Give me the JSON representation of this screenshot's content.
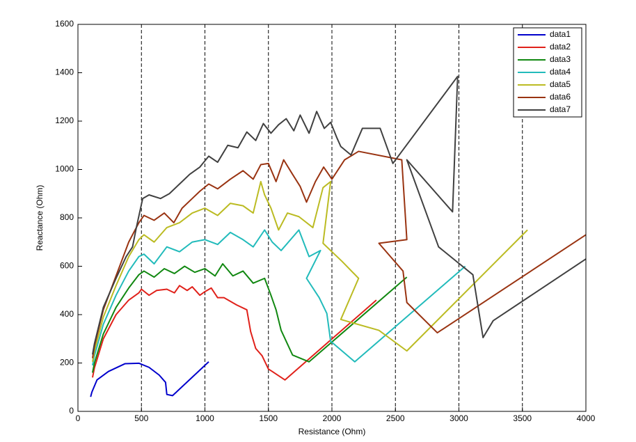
{
  "chart_data": {
    "type": "line",
    "xlabel": "Resistance (Ohm)",
    "ylabel": "Reactance (Ohm)",
    "xlim": [
      0,
      4000
    ],
    "ylim": [
      0,
      1600
    ],
    "xticks": [
      0,
      500,
      1000,
      1500,
      2000,
      2500,
      3000,
      3500,
      4000
    ],
    "yticks": [
      0,
      200,
      400,
      600,
      800,
      1000,
      1200,
      1400,
      1600
    ],
    "xgrid": "dashed",
    "legend": "upper right",
    "series": [
      {
        "name": "data1",
        "color": "#0000cc",
        "x": [
          100,
          110,
          150,
          240,
          370,
          480,
          560,
          640,
          690,
          700,
          745,
          1030
        ],
        "values": [
          60,
          80,
          130,
          165,
          197,
          199,
          182,
          150,
          120,
          70,
          65,
          205
        ]
      },
      {
        "name": "data2",
        "color": "#e0211a",
        "x": [
          115,
          130,
          200,
          300,
          400,
          480,
          500,
          560,
          620,
          700,
          760,
          800,
          860,
          900,
          960,
          1000,
          1050,
          1100,
          1150,
          1250,
          1330,
          1360,
          1400,
          1450,
          1500,
          1530,
          1630,
          2350
        ],
        "values": [
          140,
          180,
          300,
          400,
          460,
          490,
          505,
          480,
          500,
          505,
          490,
          520,
          500,
          515,
          480,
          495,
          510,
          470,
          470,
          440,
          420,
          330,
          260,
          230,
          175,
          165,
          130,
          460
        ]
      },
      {
        "name": "data3",
        "color": "#118811",
        "x": [
          115,
          130,
          200,
          300,
          400,
          480,
          520,
          600,
          680,
          760,
          840,
          920,
          1000,
          1080,
          1140,
          1220,
          1300,
          1380,
          1470,
          1520,
          1560,
          1600,
          1690,
          1820,
          2590
        ],
        "values": [
          160,
          200,
          320,
          430,
          510,
          565,
          580,
          555,
          590,
          570,
          600,
          575,
          590,
          560,
          610,
          560,
          580,
          530,
          550,
          480,
          420,
          335,
          233,
          205,
          555
        ]
      },
      {
        "name": "data4",
        "color": "#22bbbb",
        "x": [
          115,
          130,
          200,
          300,
          400,
          480,
          520,
          600,
          700,
          800,
          900,
          1000,
          1100,
          1200,
          1300,
          1380,
          1470,
          1530,
          1600,
          1740,
          1820,
          1910,
          1800,
          1900,
          1960,
          1990,
          2180,
          3050
        ],
        "values": [
          190,
          230,
          360,
          480,
          580,
          640,
          650,
          610,
          680,
          660,
          700,
          710,
          690,
          740,
          710,
          680,
          750,
          700,
          665,
          750,
          640,
          665,
          550,
          470,
          405,
          290,
          205,
          600
        ]
      },
      {
        "name": "data5",
        "color": "#bbbb22",
        "x": [
          115,
          130,
          200,
          300,
          400,
          480,
          520,
          600,
          700,
          800,
          900,
          1000,
          1100,
          1200,
          1300,
          1380,
          1440,
          1470,
          1520,
          1580,
          1650,
          1740,
          1850,
          1930,
          1990,
          1930,
          2080,
          2210,
          2070,
          2370,
          2590,
          3540
        ],
        "values": [
          205,
          250,
          390,
          520,
          640,
          710,
          730,
          700,
          760,
          780,
          820,
          840,
          810,
          860,
          850,
          820,
          950,
          895,
          840,
          750,
          820,
          805,
          760,
          925,
          950,
          695,
          620,
          550,
          380,
          335,
          250,
          750
        ]
      },
      {
        "name": "data6",
        "color": "#993311",
        "x": [
          115,
          130,
          200,
          300,
          400,
          480,
          520,
          600,
          680,
          755,
          820,
          900,
          960,
          1030,
          1100,
          1200,
          1300,
          1380,
          1440,
          1500,
          1560,
          1620,
          1690,
          1750,
          1800,
          1870,
          1935,
          2000,
          2100,
          2210,
          2550,
          2590,
          2370,
          2560,
          2590,
          2830,
          4000
        ],
        "values": [
          220,
          270,
          420,
          560,
          700,
          780,
          810,
          790,
          820,
          780,
          840,
          880,
          910,
          940,
          920,
          960,
          995,
          960,
          1020,
          1025,
          950,
          1040,
          980,
          930,
          865,
          950,
          1010,
          960,
          1040,
          1075,
          1040,
          710,
          695,
          580,
          450,
          325,
          730
        ]
      },
      {
        "name": "data7",
        "color": "#404040",
        "x": [
          115,
          130,
          200,
          300,
          380,
          430,
          460,
          510,
          560,
          650,
          720,
          800,
          880,
          960,
          1030,
          1100,
          1180,
          1260,
          1330,
          1400,
          1460,
          1520,
          1580,
          1640,
          1700,
          1750,
          1820,
          1880,
          1940,
          1990,
          2040,
          2070,
          2150,
          2240,
          2380,
          2480,
          2990,
          2950,
          2590,
          2840,
          3110,
          3190,
          3270,
          4000
        ],
        "values": [
          235,
          280,
          430,
          550,
          640,
          680,
          760,
          880,
          895,
          880,
          900,
          940,
          980,
          1010,
          1055,
          1030,
          1100,
          1090,
          1155,
          1120,
          1190,
          1150,
          1185,
          1210,
          1160,
          1225,
          1150,
          1240,
          1170,
          1195,
          1130,
          1095,
          1060,
          1170,
          1170,
          1025,
          1385,
          825,
          1040,
          680,
          565,
          305,
          375,
          630
        ]
      }
    ]
  }
}
